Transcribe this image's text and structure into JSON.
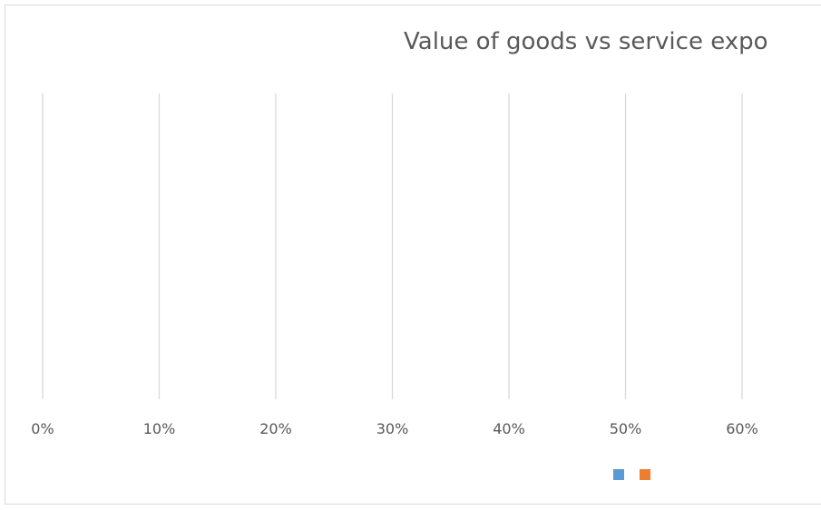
{
  "chart_data": {
    "type": "bar",
    "orientation": "horizontal",
    "title": "Value of goods vs service expo",
    "xlabel": "",
    "ylabel": "",
    "x_ticks": [
      "0%",
      "10%",
      "20%",
      "30%",
      "40%",
      "50%",
      "60%"
    ],
    "x_tick_values": [
      0,
      10,
      20,
      30,
      40,
      50,
      60
    ],
    "xlim": [
      0,
      60
    ],
    "grid": true,
    "legend": "bottom",
    "categories": [],
    "series": [
      {
        "color": "#5B9BD5",
        "values": []
      },
      {
        "color": "#ED7D31",
        "values": []
      }
    ],
    "gridline_color": "#d9d9d9",
    "text_color": "#595959"
  }
}
